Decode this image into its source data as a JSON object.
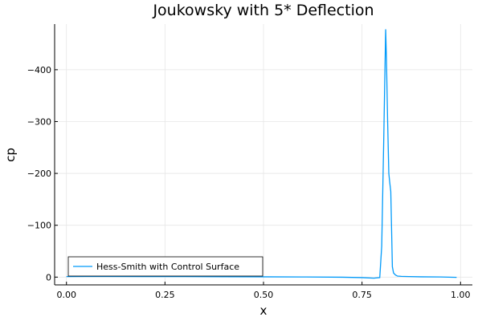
{
  "chart_data": {
    "type": "line",
    "title": "Joukowsky with 5* Deflection",
    "xlabel": "x",
    "ylabel": "cp",
    "xlim": [
      -0.03,
      1.03
    ],
    "ylim": [
      15,
      -488
    ],
    "y_inverted": true,
    "grid": true,
    "legend_position": "bottom-left",
    "x_ticks": [
      {
        "value": 0.0,
        "label": "0.00"
      },
      {
        "value": 0.25,
        "label": "0.25"
      },
      {
        "value": 0.5,
        "label": "0.50"
      },
      {
        "value": 0.75,
        "label": "0.75"
      },
      {
        "value": 1.0,
        "label": "1.00"
      }
    ],
    "y_ticks": [
      {
        "value": -400,
        "label": "−400"
      },
      {
        "value": -300,
        "label": "−300"
      },
      {
        "value": -200,
        "label": "−200"
      },
      {
        "value": -100,
        "label": "−100"
      },
      {
        "value": 0,
        "label": "0"
      }
    ],
    "series": [
      {
        "name": "Hess-Smith with Control Surface",
        "color": "#009AFA",
        "x": [
          0.0,
          0.05,
          0.1,
          0.2,
          0.3,
          0.4,
          0.5,
          0.6,
          0.7,
          0.75,
          0.78,
          0.795,
          0.8,
          0.805,
          0.81,
          0.812,
          0.815,
          0.818,
          0.82,
          0.823,
          0.827,
          0.83,
          0.835,
          0.84,
          0.85,
          0.87,
          0.9,
          0.95,
          0.99
        ],
        "y": [
          -1,
          -1.2,
          -1.2,
          -1.1,
          -1.0,
          -0.8,
          -0.6,
          -0.3,
          0.2,
          1.0,
          2.0,
          1.0,
          -60,
          -260,
          -478,
          -420,
          -300,
          -200,
          -185,
          -165,
          -20,
          -8,
          -4,
          -2,
          -1.5,
          -1.0,
          -0.6,
          -0.3,
          0.5
        ]
      }
    ]
  }
}
